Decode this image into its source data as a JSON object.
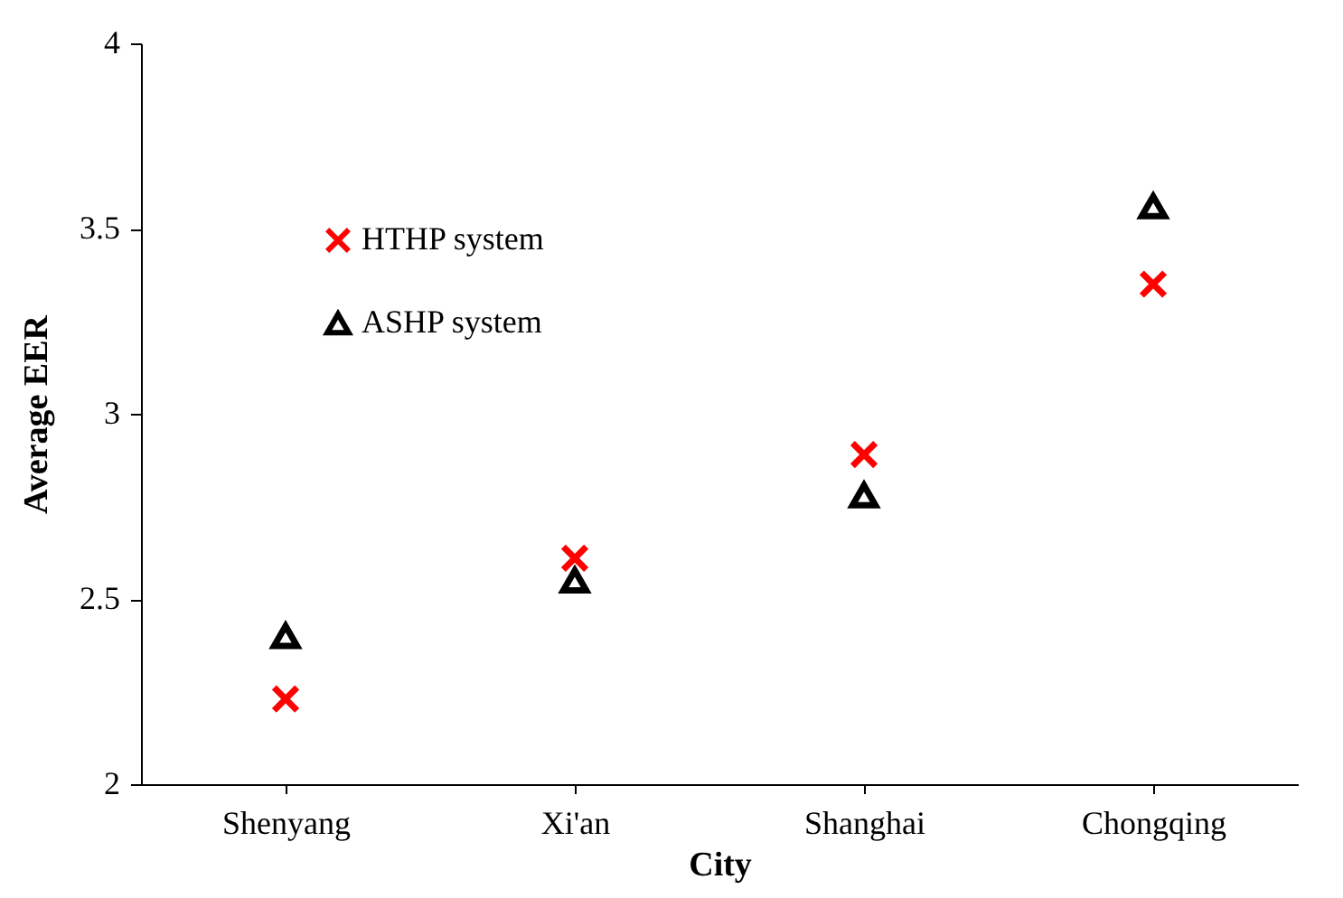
{
  "chart_data": {
    "type": "scatter",
    "xlabel": "City",
    "ylabel": "Average EER",
    "categories": [
      "Shenyang",
      "Xi'an",
      "Shanghai",
      "Chongqing"
    ],
    "series": [
      {
        "name": "HTHP system",
        "color": "#ff0000",
        "marker": "cross",
        "values": [
          2.23,
          2.61,
          2.89,
          3.35
        ]
      },
      {
        "name": "ASHP system",
        "color": "#000000",
        "marker": "triangle",
        "values": [
          2.4,
          2.55,
          2.78,
          3.56
        ]
      }
    ],
    "ylim": [
      2,
      4
    ],
    "yticks": [
      2,
      2.5,
      3,
      3.5,
      4
    ],
    "grid": false,
    "legend": "top left"
  }
}
